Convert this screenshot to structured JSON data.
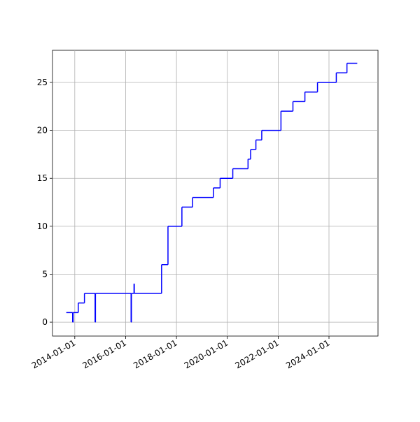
{
  "chart_data": {
    "type": "line",
    "drawstyle": "steps-post",
    "x": [
      "2013-09-01",
      "2013-12-01",
      "2013-12-08",
      "2014-02-20",
      "2014-05-20",
      "2014-10-20",
      "2014-10-25",
      "2016-03-20",
      "2016-03-25",
      "2016-05-01",
      "2016-05-05",
      "2017-06-01",
      "2017-09-01",
      "2018-03-20",
      "2018-08-20",
      "2019-06-15",
      "2019-09-20",
      "2020-03-20",
      "2020-10-25",
      "2020-12-01",
      "2021-02-15",
      "2021-05-10",
      "2022-02-10",
      "2022-08-01",
      "2023-01-20",
      "2023-07-20",
      "2024-04-15",
      "2024-09-15",
      "2025-02-10"
    ],
    "series": [
      {
        "color": "#0000ff",
        "values": [
          1,
          0,
          1,
          2,
          3,
          0,
          3,
          0,
          3,
          4,
          3,
          6,
          10,
          12,
          13,
          14,
          15,
          16,
          17,
          18,
          19,
          20,
          22,
          23,
          24,
          25,
          26,
          27,
          27
        ]
      }
    ],
    "xlim": [
      "2013-02-15",
      "2025-12-05"
    ],
    "xticks": [
      "2014-01-01",
      "2016-01-01",
      "2018-01-01",
      "2020-01-01",
      "2022-01-01",
      "2024-01-01"
    ],
    "ylim": [
      -1.45,
      28.35
    ],
    "yticks": [
      0,
      5,
      10,
      15,
      20,
      25
    ],
    "grid": true
  }
}
